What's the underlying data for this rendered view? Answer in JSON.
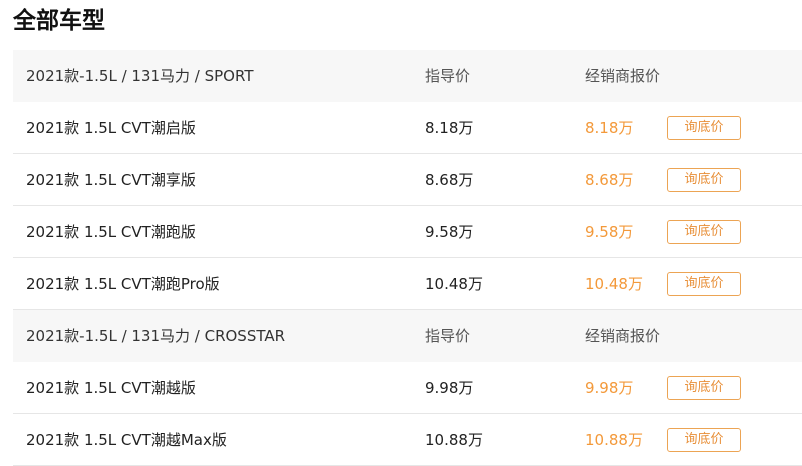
{
  "title": "全部车型",
  "colors": {
    "accent": "#f3993a",
    "header_bg": "#f7f7f7"
  },
  "groups": [
    {
      "name": "2021款-1.5L / 131马力 / SPORT",
      "guide_header": "指导价",
      "dealer_header": "经销商报价",
      "rows": [
        {
          "name": "2021款 1.5L CVT潮启版",
          "guide": "8.18万",
          "dealer": "8.18万",
          "button": "询底价"
        },
        {
          "name": "2021款 1.5L CVT潮享版",
          "guide": "8.68万",
          "dealer": "8.68万",
          "button": "询底价"
        },
        {
          "name": "2021款 1.5L CVT潮跑版",
          "guide": "9.58万",
          "dealer": "9.58万",
          "button": "询底价"
        },
        {
          "name": "2021款 1.5L CVT潮跑Pro版",
          "guide": "10.48万",
          "dealer": "10.48万",
          "button": "询底价"
        }
      ]
    },
    {
      "name": "2021款-1.5L / 131马力 / CROSSTAR",
      "guide_header": "指导价",
      "dealer_header": "经销商报价",
      "rows": [
        {
          "name": "2021款 1.5L CVT潮越版",
          "guide": "9.98万",
          "dealer": "9.98万",
          "button": "询底价"
        },
        {
          "name": "2021款 1.5L CVT潮越Max版",
          "guide": "10.88万",
          "dealer": "10.88万",
          "button": "询底价"
        }
      ]
    }
  ]
}
